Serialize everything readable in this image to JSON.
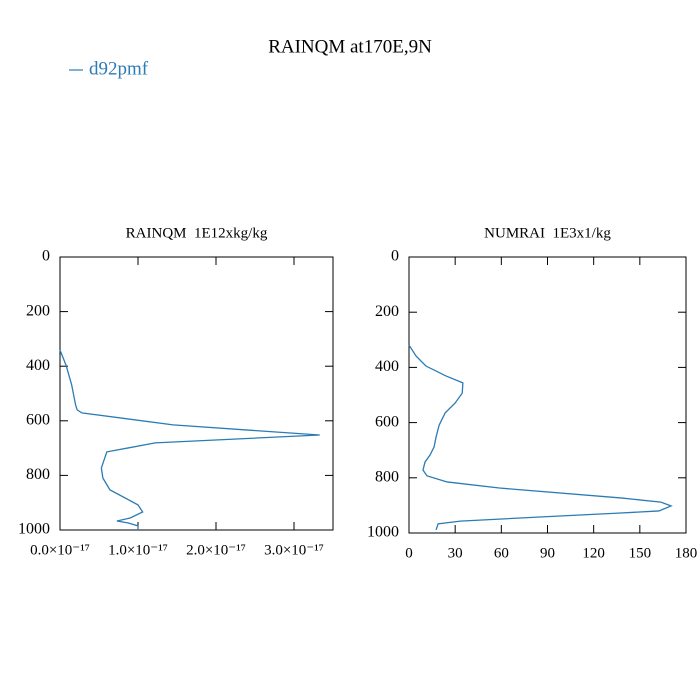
{
  "title": "RAINQM at170E,9N",
  "legend": [
    {
      "name": "d92pmf",
      "color": "#2b7bb4"
    }
  ],
  "chart_data": [
    {
      "type": "line",
      "title": "RAINQM  1E12xkg/kg",
      "xlim": [
        0,
        3.5e-17
      ],
      "xticks": [
        {
          "value": 0,
          "label": "0.0×10⁻¹⁷"
        },
        {
          "value": 1e-17,
          "label": "1.0×10⁻¹⁷"
        },
        {
          "value": 2e-17,
          "label": "2.0×10⁻¹⁷"
        },
        {
          "value": 3e-17,
          "label": "3.0×10⁻¹⁷"
        }
      ],
      "ylim": [
        1000,
        0
      ],
      "yticks": [
        0,
        200,
        400,
        600,
        800,
        1000
      ],
      "series": [
        {
          "color": "#2b7bb4",
          "levels": [
            341,
            396,
            469,
            542,
            560,
            571,
            615,
            652,
            681,
            714,
            773,
            810,
            853,
            908,
            934,
            956,
            967,
            974,
            985,
            1000
          ],
          "values": [
            0,
            7.7e-19,
            1.5e-18,
            2e-18,
            2.2e-18,
            2.8e-18,
            1.45e-17,
            3.33e-17,
            1.22e-17,
            6e-18,
            5.3e-18,
            5.5e-18,
            6.4e-18,
            1e-17,
            1.06e-17,
            9e-18,
            7.3e-18,
            8.7e-18,
            1e-17,
            1e-17
          ]
        }
      ]
    },
    {
      "type": "line",
      "title": "NUMRAI  1E3x1/kg",
      "xlim": [
        0,
        180
      ],
      "xticks": [
        0,
        30,
        60,
        90,
        120,
        150,
        180
      ],
      "ylim": [
        1000,
        0
      ],
      "yticks": [
        0,
        200,
        400,
        600,
        800,
        1000
      ],
      "series": [
        {
          "color": "#2b7bb4",
          "levels": [
            319,
            359,
            395,
            431,
            456,
            493,
            529,
            565,
            609,
            652,
            688,
            717,
            743,
            772,
            793,
            815,
            837,
            873,
            888,
            902,
            920,
            928,
            942,
            957,
            967,
            989
          ],
          "values": [
            0,
            4.6,
            11,
            24,
            35,
            34.6,
            30,
            23.5,
            19.6,
            17.6,
            16.3,
            13.7,
            10.4,
            9.1,
            11.7,
            24.8,
            58.7,
            137.6,
            163.7,
            170.3,
            162.4,
            136,
            85,
            33.3,
            18.9,
            17.6
          ]
        }
      ]
    }
  ]
}
